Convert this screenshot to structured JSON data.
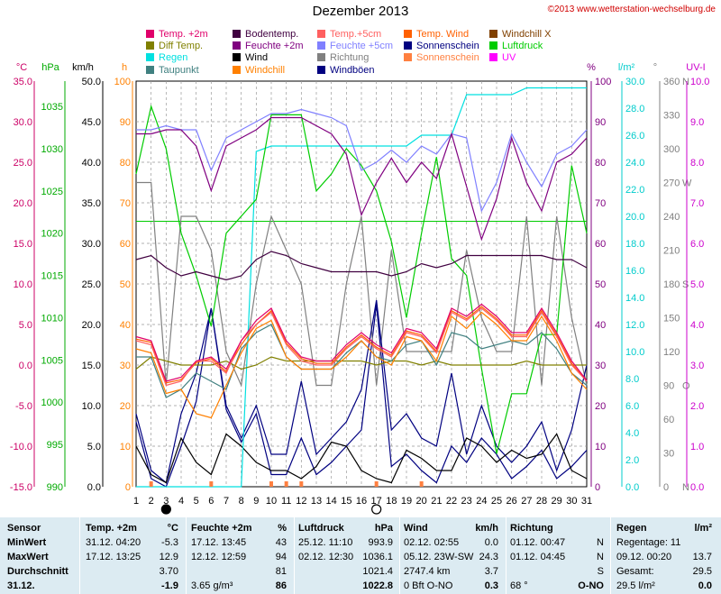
{
  "title": "Dezember 2013",
  "copyright": "©2013 www.wetterstation-wechselburg.de",
  "legend": [
    {
      "label": "Temp. +2m",
      "color": "#e0006a"
    },
    {
      "label": "Bodentemp.",
      "color": "#400040"
    },
    {
      "label": "Temp.+5cm",
      "color": "#ff6060"
    },
    {
      "label": "Temp. Wind",
      "color": "#ff6000"
    },
    {
      "label": "Windchill X",
      "color": "#804000"
    },
    {
      "label": "Diff Temp.",
      "color": "#808000"
    },
    {
      "label": "Feuchte +2m",
      "color": "#800080"
    },
    {
      "label": "Feuchte +5cm",
      "color": "#8080ff"
    },
    {
      "label": "Sonnenschein",
      "color": "#000080"
    },
    {
      "label": "Luftdruck",
      "color": "#00cc00"
    },
    {
      "label": "Regen",
      "color": "#00e0e0"
    },
    {
      "label": "Wind",
      "color": "#000000"
    },
    {
      "label": "Richtung",
      "color": "#808080"
    },
    {
      "label": "Sonnenschein",
      "color": "#ff8040"
    },
    {
      "label": "UV",
      "color": "#ff00ff"
    },
    {
      "label": "Taupunkt",
      "color": "#408080"
    },
    {
      "label": "Windchill",
      "color": "#ff8000"
    },
    {
      "label": "Windböen",
      "color": "#000080"
    }
  ],
  "axes": {
    "temp": {
      "unit": "°C",
      "ticks": [
        "35.0",
        "30.0",
        "25.0",
        "20.0",
        "15.0",
        "10.0",
        "5.0",
        "0.0",
        "-5.0",
        "-10.0",
        "-15.0"
      ],
      "color": "#cc0066"
    },
    "pressure": {
      "unit": "hPa",
      "ticks": [
        "1035",
        "1030",
        "1025",
        "1020",
        "1015",
        "1010",
        "1005",
        "1000",
        "995",
        "990"
      ],
      "color": "#00aa00"
    },
    "wind": {
      "unit": "km/h",
      "ticks": [
        "50.0",
        "45.0",
        "40.0",
        "35.0",
        "30.0",
        "25.0",
        "20.0",
        "15.0",
        "10.0",
        "5.0",
        "0.0"
      ],
      "color": "#000000"
    },
    "hours": {
      "unit": "h",
      "ticks": [
        "100",
        "90",
        "80",
        "70",
        "60",
        "50",
        "40",
        "30",
        "20",
        "10",
        "0"
      ],
      "color": "#ff8000"
    },
    "humidity": {
      "unit": "%",
      "ticks": [
        "100",
        "90",
        "80",
        "70",
        "60",
        "50",
        "40",
        "30",
        "20",
        "10",
        "0"
      ],
      "color": "#800080"
    },
    "rain": {
      "unit": "l/m²",
      "ticks": [
        "30.0",
        "28.0",
        "26.0",
        "24.0",
        "22.0",
        "20.0",
        "18.0",
        "16.0",
        "14.0",
        "12.0",
        "10.0",
        "8.0",
        "6.0",
        "4.0",
        "2.0",
        "0.0"
      ],
      "color": "#00cccc"
    },
    "direction": {
      "unit": "°",
      "ticks": [
        "360",
        "330",
        "300",
        "270",
        "240",
        "210",
        "180",
        "150",
        "120",
        "90",
        "60",
        "30",
        "0"
      ],
      "labels": [
        "N",
        "",
        "",
        "W",
        "",
        "",
        "S",
        "",
        "",
        "O",
        "",
        "",
        "N"
      ],
      "color": "#808080"
    },
    "uv": {
      "unit": "UV-I",
      "ticks": [
        "10.0",
        "9.0",
        "8.0",
        "7.0",
        "6.0",
        "5.0",
        "4.0",
        "3.0",
        "2.0",
        "1.0",
        "0.0"
      ],
      "color": "#cc00cc"
    },
    "days": [
      "1",
      "2",
      "3",
      "4",
      "5",
      "6",
      "7",
      "8",
      "9",
      "10",
      "11",
      "12",
      "13",
      "14",
      "15",
      "16",
      "17",
      "18",
      "19",
      "20",
      "21",
      "22",
      "23",
      "24",
      "25",
      "26",
      "27",
      "28",
      "29",
      "30",
      "31"
    ]
  },
  "chart_data": {
    "type": "line",
    "title": "Dezember 2013",
    "x": [
      1,
      2,
      3,
      4,
      5,
      6,
      7,
      8,
      9,
      10,
      11,
      12,
      13,
      14,
      15,
      16,
      17,
      18,
      19,
      20,
      21,
      22,
      23,
      24,
      25,
      26,
      27,
      28,
      29,
      30,
      31
    ],
    "series": [
      {
        "name": "Temp. +2m",
        "axis": "temp",
        "color": "#e0006a",
        "values": [
          3.5,
          3.0,
          -2.0,
          -1.5,
          0.5,
          1.0,
          -0.5,
          3.0,
          5.5,
          7.0,
          3.0,
          1.0,
          0.5,
          0.5,
          2.5,
          4.0,
          2.5,
          1.5,
          4.5,
          4.0,
          2.0,
          7.0,
          6.0,
          7.5,
          6.0,
          4.0,
          4.0,
          7.0,
          4.0,
          0.5,
          -1.9
        ]
      },
      {
        "name": "Temp.+5cm",
        "axis": "temp",
        "color": "#ff6060",
        "values": [
          3.0,
          2.5,
          -2.5,
          -2.0,
          0.5,
          0.5,
          -1.0,
          3.0,
          5.0,
          6.5,
          2.5,
          0.5,
          0.0,
          0.0,
          2.0,
          3.5,
          2.0,
          1.0,
          4.0,
          3.5,
          1.5,
          6.5,
          5.5,
          7.0,
          5.5,
          3.5,
          3.5,
          6.5,
          3.5,
          0.0,
          -2.0
        ]
      },
      {
        "name": "Temp. Wind",
        "axis": "temp",
        "color": "#ff6000",
        "values": [
          3.2,
          2.8,
          -2.2,
          -1.8,
          0.3,
          0.8,
          -0.8,
          2.5,
          5.0,
          6.7,
          2.7,
          0.8,
          0.2,
          0.2,
          2.2,
          3.7,
          2.2,
          1.2,
          4.2,
          3.7,
          1.7,
          6.7,
          5.7,
          7.2,
          5.7,
          3.7,
          3.7,
          6.7,
          3.7,
          0.2,
          -2.0
        ]
      },
      {
        "name": "Windchill",
        "axis": "temp",
        "color": "#ff8000",
        "values": [
          2.0,
          1.5,
          -3.5,
          -3.0,
          -6.0,
          -6.5,
          -2.5,
          1.5,
          4.5,
          5.5,
          1.0,
          -0.5,
          -0.5,
          -0.5,
          1.0,
          3.0,
          1.0,
          0.0,
          3.5,
          3.0,
          0.5,
          6.0,
          4.5,
          6.5,
          5.0,
          3.0,
          3.0,
          6.0,
          3.0,
          -1.0,
          -3.0
        ]
      },
      {
        "name": "Taupunkt",
        "axis": "temp",
        "color": "#408080",
        "values": [
          1.0,
          1.0,
          -4.0,
          -3.0,
          -1.0,
          -2.0,
          -3.0,
          2.0,
          4.0,
          5.0,
          1.0,
          -0.5,
          -0.5,
          -0.5,
          1.5,
          3.0,
          1.0,
          0.5,
          2.5,
          3.0,
          0.0,
          4.0,
          3.5,
          2.0,
          2.5,
          3.0,
          2.5,
          4.0,
          2.0,
          -1.0,
          -2.5
        ]
      },
      {
        "name": "Bodentemp.",
        "axis": "temp",
        "color": "#400040",
        "values": [
          13.0,
          13.5,
          12.0,
          11.0,
          11.5,
          11.0,
          10.5,
          11.0,
          13.0,
          14.0,
          13.5,
          12.5,
          12.0,
          11.5,
          11.5,
          11.5,
          11.5,
          11.0,
          11.5,
          12.5,
          12.0,
          12.5,
          13.5,
          13.5,
          13.5,
          13.5,
          13.5,
          13.5,
          13.0,
          13.0,
          12.0
        ]
      },
      {
        "name": "Diff Temp.",
        "axis": "temp",
        "color": "#808000",
        "values": [
          -0.5,
          1.0,
          0.5,
          0.0,
          0.0,
          0.0,
          0.5,
          -0.5,
          0.0,
          1.0,
          0.5,
          0.5,
          0.5,
          0.5,
          0.5,
          0.5,
          0.0,
          0.5,
          0.5,
          0.0,
          0.5,
          0.0,
          0.0,
          0.0,
          0.0,
          0.0,
          0.5,
          0.0,
          0.0,
          0.0,
          0.0
        ]
      },
      {
        "name": "Feuchte +2m",
        "axis": "humidity",
        "color": "#800080",
        "values": [
          87,
          87,
          88,
          88,
          84,
          73,
          84,
          86,
          88,
          91,
          91,
          91,
          89,
          87,
          82,
          67,
          75,
          81,
          75,
          80,
          76,
          87,
          74,
          61,
          71,
          86,
          75,
          68,
          80,
          82,
          86
        ]
      },
      {
        "name": "Feuchte +5cm",
        "axis": "humidity",
        "color": "#8080ff",
        "values": [
          88,
          88,
          89,
          88,
          88,
          78,
          86,
          88,
          90,
          92,
          92,
          93,
          92,
          91,
          89,
          78,
          80,
          83,
          80,
          84,
          82,
          87,
          86,
          68,
          75,
          87,
          80,
          74,
          82,
          84,
          88
        ]
      },
      {
        "name": "Luftdruck",
        "axis": "pressure",
        "color": "#00cc00",
        "values": [
          1027,
          1035,
          1030,
          1020,
          1015,
          1009,
          1020,
          1022,
          1024,
          1034,
          1034,
          1034,
          1025,
          1027,
          1030,
          1028,
          1025,
          1019,
          1010,
          1020,
          1029,
          1017,
          1015,
          1004,
          993.9,
          1001,
          1001,
          1008,
          1008,
          1028,
          1020
        ]
      },
      {
        "name": "Regen",
        "axis": "rain",
        "color": "#00e0e0",
        "values": [
          0,
          0,
          0,
          0,
          0,
          0,
          0,
          0,
          24.8,
          25.2,
          25.2,
          25.2,
          25.2,
          25.2,
          25.2,
          25.2,
          25.2,
          25.2,
          25.2,
          26.0,
          26.0,
          26.0,
          29.0,
          29.0,
          29.0,
          29.0,
          29.5,
          29.5,
          29.5,
          29.5,
          29.5
        ]
      },
      {
        "name": "Wind",
        "axis": "wind",
        "color": "#000000",
        "values": [
          5.0,
          1.5,
          0.5,
          6.0,
          3.0,
          1.5,
          6.5,
          5.0,
          3.0,
          2.0,
          2.0,
          1.0,
          2.5,
          5.5,
          5.0,
          2.0,
          1.0,
          0.5,
          4.5,
          3.5,
          2.0,
          2.0,
          6.0,
          5.0,
          3.0,
          4.5,
          3.5,
          4.0,
          6.5,
          2.0,
          1.0
        ]
      },
      {
        "name": "Windböen",
        "axis": "wind",
        "color": "#000080",
        "values": [
          9.0,
          2.0,
          0.5,
          9.0,
          14.0,
          22.0,
          10.0,
          6.0,
          10.0,
          4.0,
          4.0,
          13.0,
          4.0,
          6.0,
          8.0,
          12.0,
          23.0,
          7.0,
          9.0,
          6.0,
          5.0,
          14.0,
          4.0,
          10.0,
          5.0,
          3.0,
          5.0,
          8.0,
          2.0,
          7.0,
          15.0
        ]
      },
      {
        "name": "Richtung",
        "axis": "direction",
        "color": "#808080",
        "values": [
          270,
          270,
          90,
          240,
          240,
          210,
          120,
          90,
          180,
          240,
          210,
          180,
          90,
          90,
          180,
          240,
          90,
          210,
          120,
          120,
          120,
          120,
          210,
          150,
          120,
          120,
          240,
          90,
          240,
          150,
          90
        ]
      },
      {
        "name": "Sonnenschein",
        "axis": "hours",
        "color": "#000080",
        "values": [
          16,
          2,
          0,
          10,
          21,
          44,
          19,
          11,
          18,
          3,
          3,
          12,
          3,
          6,
          10,
          14,
          45,
          5,
          8,
          4,
          1,
          10,
          6,
          12,
          8,
          2,
          5,
          9,
          2,
          5,
          9
        ]
      }
    ]
  },
  "bottom_markers": [
    3,
    17
  ],
  "table": {
    "rows": [
      {
        "c0": "Sensor",
        "c1": "Temp. +2m",
        "c2": "°C",
        "c3": "Feuchte +2m",
        "c4": "%",
        "c5": "Luftdruck",
        "c6": "hPa",
        "c7": "Wind",
        "c8": "km/h",
        "c9": "Richtung",
        "c10": "",
        "c11": "Regen",
        "c12": "l/m²"
      },
      {
        "c0": "MinWert",
        "c1": "31.12.  04:20",
        "c2": "-5.3",
        "c3": "17.12.  13:45",
        "c4": "43",
        "c5": "25.12.  11:10",
        "c6": "993.9",
        "c7": "02.12.  02:55",
        "c8": "0.0",
        "c9": "01.12.  00:47",
        "c10": "N",
        "c11": "Regentage: 11",
        "c12": ""
      },
      {
        "c0": "MaxWert",
        "c1": "17.12.  13:25",
        "c2": "12.9",
        "c3": "12.12.  12:59",
        "c4": "94",
        "c5": "02.12.  12:30",
        "c6": "1036.1",
        "c7": "05.12.  23W-SW",
        "c8": "24.3",
        "c9": "01.12.  04:45",
        "c10": "N",
        "c11": "09.12.  00:20",
        "c12": "13.7"
      },
      {
        "c0": "Durchschnitt",
        "c1": "",
        "c2": "3.70",
        "c3": "",
        "c4": "81",
        "c5": "",
        "c6": "1021.4",
        "c7": "2747.4 km",
        "c8": "3.7",
        "c9": "",
        "c10": "S",
        "c11": "Gesamt:",
        "c12": "29.5"
      },
      {
        "c0": "31.12.",
        "c1": "",
        "c2": "-1.9",
        "c3": "3.65 g/m³",
        "c4": "86",
        "c5": "",
        "c6": "1022.8",
        "c7": "0 Bft O-NO",
        "c8": "0.3",
        "c9": "68 °",
        "c10": "O-NO",
        "c11": "29.5 l/m²",
        "c12": "0.0"
      }
    ]
  }
}
